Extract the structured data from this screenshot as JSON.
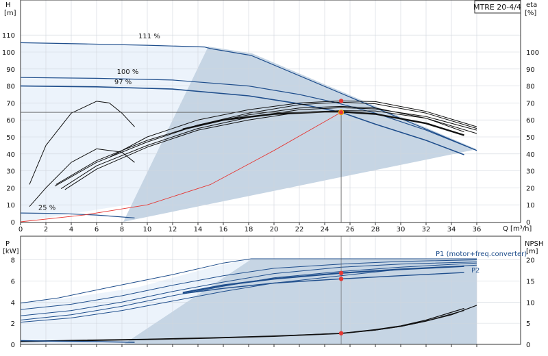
{
  "chart_data": [
    {
      "type": "line",
      "title_box": "MTRE 20-4/4",
      "ylabel_left": "H",
      "ylabel_left_unit": "[m]",
      "ylabel_right": "eta",
      "ylabel_right_unit": "[%]",
      "xlabel": "Q [m³/h]",
      "xlim": [
        0,
        36
      ],
      "ylim_left": [
        0,
        115
      ],
      "ylim_right": [
        0,
        115
      ],
      "x_ticks": [
        0,
        2,
        4,
        6,
        8,
        10,
        12,
        14,
        16,
        18,
        20,
        22,
        24,
        26,
        28,
        30,
        32,
        34,
        36
      ],
      "x_tick_labels": [
        "0",
        "2",
        "4",
        "6",
        "8",
        "10",
        "12",
        "14",
        "16",
        "18",
        "20",
        "22",
        "24",
        "26",
        "28",
        "30",
        "32",
        "34",
        "36"
      ],
      "y_ticks_left": [
        0,
        10,
        20,
        30,
        40,
        50,
        60,
        70,
        80,
        90,
        100,
        110
      ],
      "y_tick_labels_left": [
        "0",
        "10",
        "20",
        "30",
        "40",
        "50",
        "60",
        "70",
        "80",
        "90",
        "100",
        "110"
      ],
      "y_ticks_right": [
        0,
        10,
        20,
        30,
        40,
        50,
        60,
        70,
        80,
        90,
        100
      ],
      "y_tick_labels_right": [
        "0",
        "10",
        "20",
        "30",
        "40",
        "50",
        "60",
        "70",
        "80",
        "90",
        "100"
      ],
      "speed_labels": [
        {
          "text": "111 %",
          "x": 9.3,
          "y": 108
        },
        {
          "text": "100 %",
          "x": 7.6,
          "y": 87
        },
        {
          "text": "97 %",
          "x": 7.4,
          "y": 81
        },
        {
          "text": "25 %",
          "x": 1.4,
          "y": 7
        }
      ],
      "series": [
        {
          "role": "head-111",
          "x": [
            0,
            5,
            10,
            14.5,
            15,
            18.2,
            36
          ],
          "y": [
            105.5,
            104.8,
            104,
            103,
            102,
            98,
            42
          ]
        },
        {
          "role": "head-100",
          "x": [
            0,
            6,
            12,
            18,
            22,
            25,
            28,
            32,
            36
          ],
          "y": [
            85,
            84.5,
            83.5,
            80,
            75,
            70,
            64,
            54,
            42
          ]
        },
        {
          "role": "head-97",
          "x": [
            0,
            6,
            12,
            18,
            22,
            25.3,
            28,
            32,
            35
          ],
          "y": [
            80,
            79.5,
            78.2,
            74.2,
            69.5,
            64.5,
            57.5,
            48,
            39.5
          ]
        },
        {
          "role": "head-25",
          "x": [
            0,
            3,
            6,
            9
          ],
          "y": [
            5.2,
            4.9,
            4.0,
            2.3
          ]
        },
        {
          "role": "system-curve",
          "x": [
            0,
            5,
            10,
            15,
            20,
            25.3
          ],
          "y": [
            0,
            4,
            10,
            22,
            42,
            64.5
          ]
        },
        {
          "role": "eta-main",
          "x": [
            12.8,
            16,
            20,
            24,
            25.3,
            28,
            32,
            35
          ],
          "y": [
            54.5,
            60,
            63.5,
            64.8,
            64.8,
            63.5,
            58,
            51
          ],
          "width": 2.4
        },
        {
          "role": "eta-1",
          "x": [
            2.8,
            6,
            10,
            14,
            18,
            22,
            25.3,
            28,
            32,
            35
          ],
          "y": [
            22,
            36,
            48,
            57,
            63,
            67,
            68,
            67,
            61,
            53
          ]
        },
        {
          "role": "eta-2",
          "x": [
            3.2,
            6,
            10,
            14,
            18,
            22,
            25.3,
            28,
            32,
            36
          ],
          "y": [
            19.5,
            33,
            45,
            55,
            61.5,
            66,
            67.2,
            66.5,
            62,
            54
          ]
        },
        {
          "role": "eta-3",
          "x": [
            2.7,
            6,
            10,
            14,
            18,
            22,
            25.3,
            28,
            32,
            36
          ],
          "y": [
            21,
            35,
            47,
            57,
            64,
            69,
            70.5,
            69.5,
            64,
            55
          ]
        },
        {
          "role": "eta-4",
          "x": [
            3.5,
            6,
            10,
            14,
            18,
            22,
            25.3,
            28,
            32,
            36
          ],
          "y": [
            19,
            31,
            44,
            54,
            60,
            64.5,
            65.5,
            65.3,
            61,
            52
          ]
        },
        {
          "role": "eta-top",
          "x": [
            7,
            10,
            14,
            18,
            22,
            25.3,
            28,
            32,
            36
          ],
          "y": [
            38,
            50,
            60,
            66,
            70,
            71.2,
            70.8,
            65,
            56
          ]
        },
        {
          "role": "eta-small-1",
          "x": [
            0.7,
            2,
            4,
            6,
            7,
            8,
            9
          ],
          "y": [
            22,
            45,
            64,
            71,
            70,
            64,
            56
          ]
        },
        {
          "role": "eta-small-2",
          "x": [
            0.7,
            2,
            4,
            6,
            8,
            9
          ],
          "y": [
            9,
            20,
            35,
            43,
            41,
            35
          ]
        }
      ],
      "duty_point": {
        "x": 25.3,
        "y_head": 64.5,
        "y_eta": 71.2
      }
    },
    {
      "type": "line",
      "ylabel_left": "P",
      "ylabel_left_unit": "[kW]",
      "ylabel_right": "NPSH",
      "ylabel_right_unit": "[m]",
      "xlim": [
        0,
        36
      ],
      "ylim_left": [
        0,
        8.1
      ],
      "ylim_right": [
        0,
        20.25
      ],
      "y_ticks_left": [
        0,
        2,
        4,
        6,
        8
      ],
      "y_tick_labels_left": [
        "0",
        "2",
        "4",
        "6",
        "8"
      ],
      "y_ticks_right": [
        0,
        5,
        10,
        15,
        20
      ],
      "y_tick_labels_right": [
        "0",
        "5",
        "10",
        "15",
        "20"
      ],
      "legend_p1": "P1 (motor+freq.converter)",
      "legend_p2": "P2",
      "series": [
        {
          "role": "p-max",
          "x": [
            0,
            3,
            7,
            12,
            16,
            18.2,
            36
          ],
          "y": [
            3.9,
            4.4,
            5.4,
            6.6,
            7.7,
            8.1,
            8.1
          ]
        },
        {
          "role": "p-1",
          "x": [
            0,
            4,
            8,
            12,
            16,
            20,
            25.3,
            30,
            36
          ],
          "y": [
            3.3,
            3.8,
            4.6,
            5.6,
            6.5,
            7.2,
            7.6,
            7.85,
            8.0
          ]
        },
        {
          "role": "p-2",
          "x": [
            0,
            4,
            8,
            12,
            16,
            20,
            25.3,
            30,
            36
          ],
          "y": [
            2.7,
            3.2,
            4.0,
            5.0,
            5.9,
            6.7,
            7.3,
            7.6,
            7.8
          ]
        },
        {
          "role": "p-3",
          "x": [
            0,
            4,
            8,
            12,
            16,
            20,
            25.3,
            30,
            36
          ],
          "y": [
            2.3,
            2.8,
            3.6,
            4.6,
            5.5,
            6.3,
            6.9,
            7.3,
            7.7
          ]
        },
        {
          "role": "p-4",
          "x": [
            0,
            4,
            8,
            12,
            16,
            20,
            25.3,
            30,
            36
          ],
          "y": [
            2.1,
            2.5,
            3.2,
            4.1,
            5.0,
            5.8,
            6.5,
            7.1,
            7.5
          ]
        },
        {
          "role": "p1-main",
          "x": [
            12.8,
            16,
            20,
            25.3,
            30,
            35
          ],
          "y": [
            4.9,
            5.6,
            6.2,
            6.75,
            7.1,
            7.4
          ],
          "width": 2.2
        },
        {
          "role": "p2-main",
          "x": [
            12.8,
            16,
            20,
            25.3,
            30,
            35
          ],
          "y": [
            4.8,
            5.3,
            5.8,
            6.2,
            6.5,
            6.8
          ]
        },
        {
          "role": "npsh-1",
          "x": [
            0,
            5,
            10,
            15,
            20,
            25.3,
            28,
            30,
            32,
            34,
            36
          ],
          "y": [
            0.3,
            0.4,
            0.5,
            0.62,
            0.8,
            1.05,
            1.35,
            1.7,
            2.2,
            2.8,
            3.7
          ]
        },
        {
          "role": "npsh-2",
          "x": [
            0,
            5,
            10,
            15,
            20,
            25.3,
            28,
            30,
            32,
            35
          ],
          "y": [
            0.28,
            0.38,
            0.48,
            0.6,
            0.78,
            1.05,
            1.4,
            1.75,
            2.3,
            3.4
          ]
        },
        {
          "role": "npsh-3",
          "x": [
            0,
            5,
            10,
            15,
            20,
            25.3,
            28,
            30,
            32,
            35
          ],
          "y": [
            0.25,
            0.35,
            0.45,
            0.58,
            0.75,
            1.02,
            1.35,
            1.7,
            2.2,
            3.2
          ]
        },
        {
          "role": "npsh-25",
          "x": [
            0,
            3,
            6,
            9
          ],
          "y": [
            0.35,
            0.3,
            0.25,
            0.2
          ]
        }
      ],
      "duty_points_y": [
        6.75,
        6.2,
        1.05
      ]
    }
  ]
}
